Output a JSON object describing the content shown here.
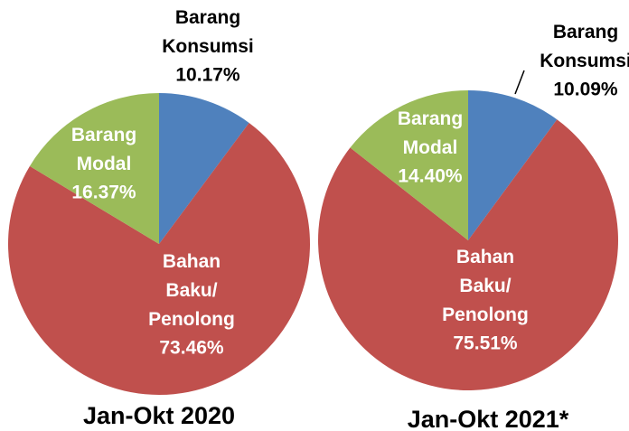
{
  "chart_data": [
    {
      "type": "pie",
      "title": "Jan-Okt 2020",
      "categories": [
        "Barang Konsumsi",
        "Bahan Baku/ Penolong",
        "Barang Modal"
      ],
      "values": [
        10.17,
        73.46,
        16.37
      ],
      "value_labels": [
        "10.17%",
        "73.46%",
        "16.37%"
      ],
      "colors": [
        "#4f81bd",
        "#c0504d",
        "#9bbb59"
      ]
    },
    {
      "type": "pie",
      "title": "Jan-Okt 2021*",
      "categories": [
        "Barang Konsumsi",
        "Bahan Baku/ Penolong",
        "Barang Modal"
      ],
      "values": [
        10.09,
        75.51,
        14.4
      ],
      "value_labels": [
        "10.09%",
        "75.51%",
        "14.40%"
      ],
      "colors": [
        "#4f81bd",
        "#c0504d",
        "#9bbb59"
      ]
    }
  ]
}
